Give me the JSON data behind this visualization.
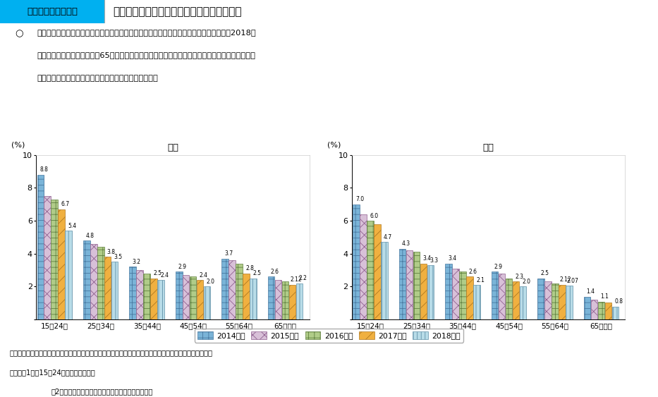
{
  "title_box": "第１－（２）－２図",
  "title_main": "男女別・年齢階級別にみた完全失業率の推移",
  "subtitle_circle": "○",
  "subtitle_line1": "完全失業率の推移を年齢階級別にみると、各年齢階級において趣勢的に低下傾向にある。2018年",
  "subtitle_line2": "度の動向をみると、男性の、65歳以上」を除き、男女ともに全ての年齢階級において完全失業率が",
  "subtitle_line3": "低下している中、特に若年層における低下幅が大きい。",
  "categories": [
    "15～24歳",
    "25～34歳",
    "35～44歳",
    "45～54歳",
    "55～64歳",
    "65歳以上"
  ],
  "male_title": "男性",
  "female_title": "女性",
  "ylabel": "(%)",
  "ylim": [
    0,
    10
  ],
  "yticks": [
    0,
    2,
    4,
    6,
    8,
    10
  ],
  "years": [
    "2014年度",
    "2015年度",
    "2016年度",
    "2017年度",
    "2018年度"
  ],
  "male_data": [
    [
      8.8,
      7.5,
      7.3,
      6.7,
      5.4
    ],
    [
      4.8,
      4.6,
      4.4,
      3.8,
      3.5
    ],
    [
      3.2,
      3.0,
      2.8,
      2.5,
      2.4
    ],
    [
      2.9,
      2.7,
      2.6,
      2.4,
      2.0
    ],
    [
      3.7,
      3.6,
      3.4,
      2.8,
      2.5
    ],
    [
      2.6,
      2.4,
      2.3,
      2.12,
      2.2
    ]
  ],
  "female_data": [
    [
      7.0,
      6.4,
      6.0,
      5.8,
      4.7
    ],
    [
      4.3,
      4.2,
      4.1,
      3.4,
      3.3
    ],
    [
      3.4,
      3.1,
      2.9,
      2.6,
      2.1
    ],
    [
      2.9,
      2.8,
      2.5,
      2.3,
      2.0
    ],
    [
      2.5,
      2.3,
      2.2,
      2.12,
      2.07
    ],
    [
      1.4,
      1.2,
      1.1,
      1.05,
      0.8
    ]
  ],
  "male_labels": [
    [
      "8.8",
      "",
      "",
      "6.7",
      "5.4"
    ],
    [
      "4.8",
      "",
      "",
      "3.8",
      "3.5"
    ],
    [
      "3.2",
      "",
      "",
      "2.5",
      "2.4"
    ],
    [
      "2.9",
      "",
      "",
      "2.4",
      "2.0"
    ],
    [
      "3.7",
      "",
      "",
      "2.8",
      "2.5"
    ],
    [
      "2.6",
      "",
      "",
      "2.12",
      "2.2"
    ]
  ],
  "female_labels": [
    [
      "7.0",
      "",
      "6.0",
      "",
      "4.7"
    ],
    [
      "4.3",
      "",
      "",
      "3.4",
      "3.3"
    ],
    [
      "3.4",
      "",
      "",
      "2.6",
      "2.1"
    ],
    [
      "2.9",
      "",
      "",
      "2.3",
      "2.0"
    ],
    [
      "2.5",
      "",
      "",
      "2.12",
      "2.07"
    ],
    [
      "1.4",
      "",
      "1.1",
      "",
      "0.8"
    ]
  ],
  "bar_face_colors": [
    "#7ab4d8",
    "#d8c0d8",
    "#b0cc88",
    "#f0b040",
    "#b8dce8"
  ],
  "bar_edge_colors": [
    "#4878a0",
    "#906090",
    "#608040",
    "#b07820",
    "#6090a8"
  ],
  "hatches": [
    "+",
    "x",
    "+",
    "//",
    "|||"
  ],
  "source_line1": "資料出所　総務省統計局「労働力調査（詳細集計）」をもとに厚生労働省政策統括官付政策統括室にて作成",
  "note1": "（注）　1）【15～24歳は既卒を対象。",
  "note2": "　2）数値は、四半期データの平均を使用している。",
  "header_bg": "#00b0f0",
  "header_border": "#cccccc"
}
